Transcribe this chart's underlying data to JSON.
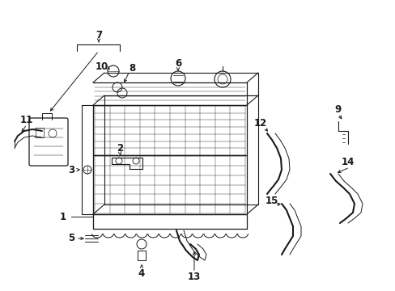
{
  "bg_color": "#ffffff",
  "line_color": "#1a1a1a",
  "lw": 0.9
}
